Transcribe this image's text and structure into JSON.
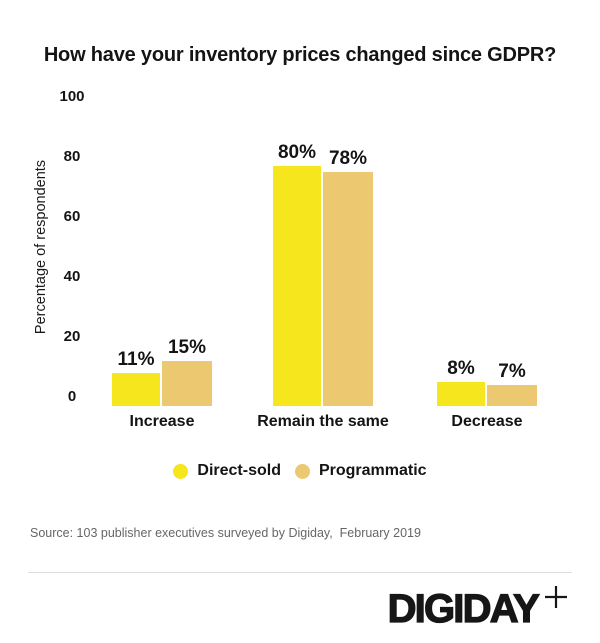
{
  "title": "How have your inventory prices changed since GDPR?",
  "chart_data": {
    "type": "bar",
    "title": "How have your inventory prices changed since GDPR?",
    "xlabel": "",
    "ylabel": "Percentage of respondents",
    "ylim": [
      0,
      100
    ],
    "yticks": [
      0,
      20,
      40,
      60,
      80,
      100
    ],
    "grid": false,
    "legend_position": "bottom",
    "value_suffix": "%",
    "categories": [
      "Increase",
      "Remain the same",
      "Decrease"
    ],
    "series": [
      {
        "name": "Direct-sold",
        "color": "#F5E61E",
        "values": [
          11,
          80,
          8
        ]
      },
      {
        "name": "Programmatic",
        "color": "#ECC970",
        "values": [
          15,
          78,
          7
        ]
      }
    ]
  },
  "source": "Source: 103 publisher executives surveyed by Digiday,  February 2019",
  "footer": {
    "logo_text": "DIGIDAY",
    "plus_icon": "plus-icon"
  }
}
